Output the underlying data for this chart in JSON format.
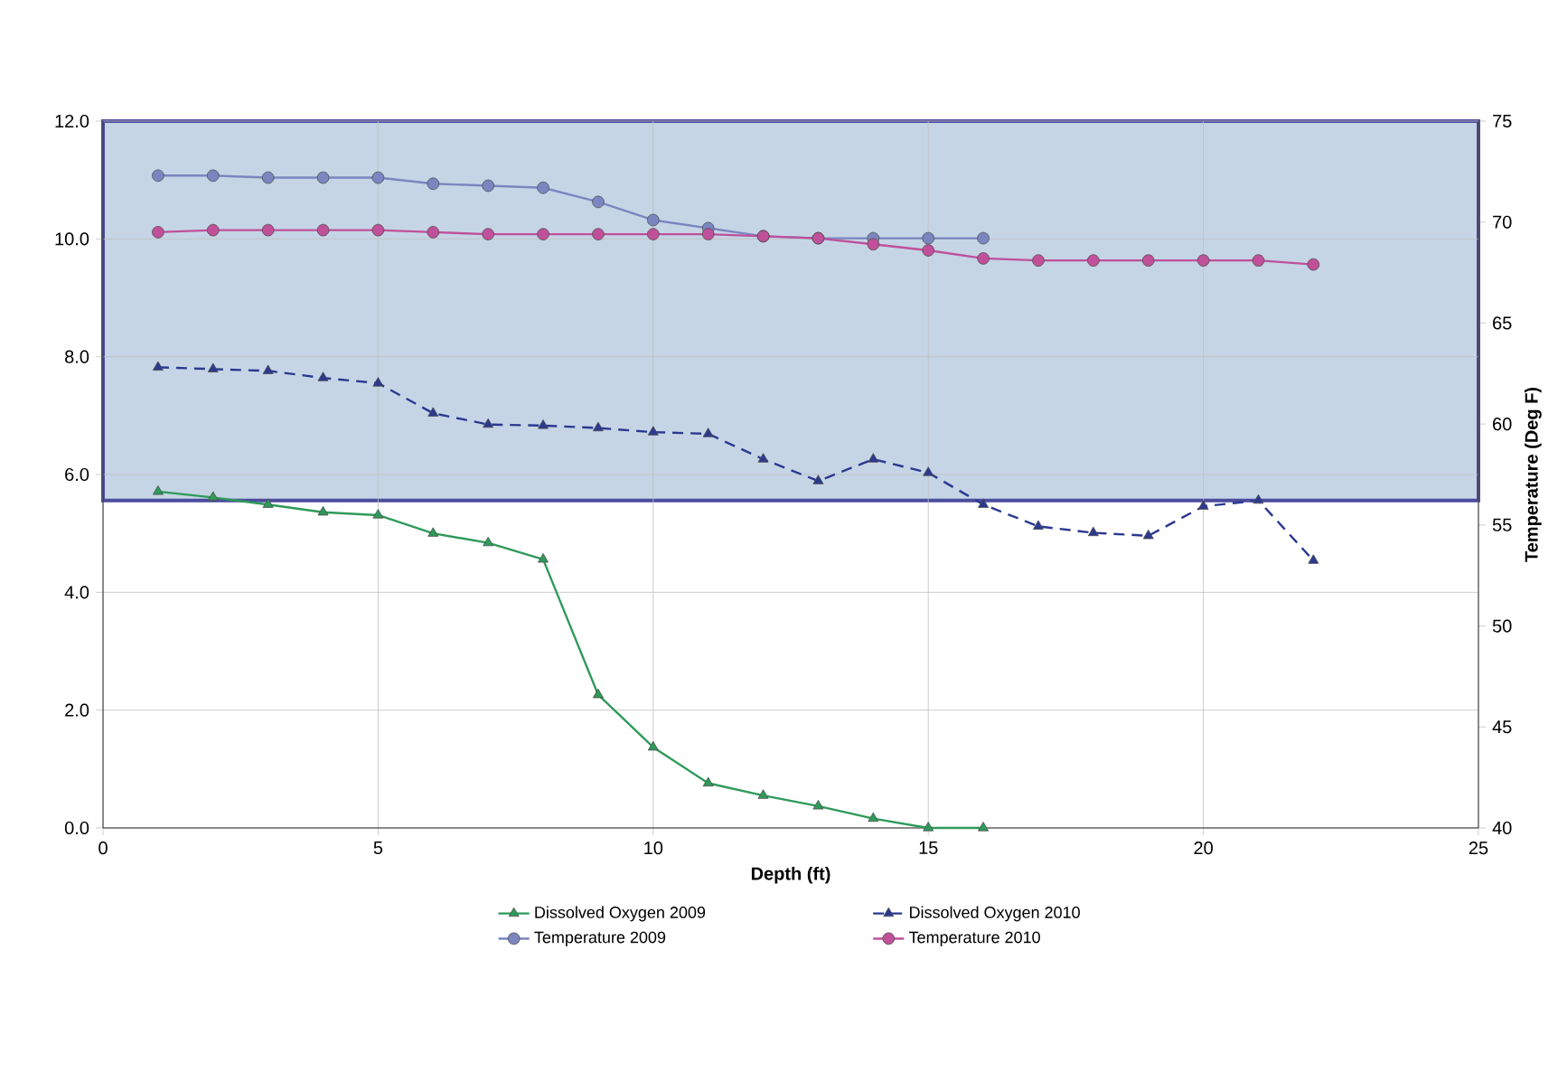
{
  "chart_data": {
    "type": "line",
    "xlabel": "Depth (ft)",
    "y2label": "Temperature (Deg F)",
    "xlim": [
      0,
      25
    ],
    "xticks": [
      0,
      5,
      10,
      15,
      20,
      25
    ],
    "ylim": [
      0,
      12
    ],
    "yticks": [
      {
        "value": 0,
        "label": "0.0"
      },
      {
        "value": 2,
        "label": "2.0"
      },
      {
        "value": 4,
        "label": "4.0"
      },
      {
        "value": 6,
        "label": "6.0"
      },
      {
        "value": 8,
        "label": "8.0"
      },
      {
        "value": 10,
        "label": "10.0"
      },
      {
        "value": 12,
        "label": "12.0"
      }
    ],
    "y2lim": [
      40,
      75
    ],
    "y2ticks": [
      40,
      45,
      50,
      55,
      60,
      65,
      70,
      75
    ],
    "grid": true,
    "legend": "bottom",
    "bands": [
      {
        "axis": "y",
        "from": 5.56,
        "to": 12,
        "color": "#c5d5e6"
      }
    ],
    "series": [
      {
        "name": "Dissolved Oxygen 2009",
        "color": "#2e9a5a",
        "marker": "triangle",
        "line_style": "solid",
        "x": [
          1,
          2,
          3,
          4,
          5,
          6,
          7,
          8,
          9,
          10,
          11,
          12,
          13,
          14,
          15,
          16
        ],
        "values": [
          5.71,
          5.61,
          5.49,
          5.36,
          5.31,
          5.0,
          4.84,
          4.56,
          2.26,
          1.37,
          0.76,
          0.55,
          0.37,
          0.16,
          0,
          0
        ]
      },
      {
        "name": "Dissolved Oxygen 2010",
        "color": "#2b3990",
        "marker": "triangle",
        "line_style": "dashed",
        "x": [
          1,
          2,
          3,
          4,
          5,
          6,
          7,
          8,
          9,
          10,
          11,
          12,
          13,
          14,
          15,
          16,
          17,
          18,
          19,
          20,
          21,
          22
        ],
        "values": [
          7.82,
          7.79,
          7.76,
          7.64,
          7.55,
          7.04,
          6.85,
          6.83,
          6.79,
          6.72,
          6.69,
          6.26,
          5.89,
          6.26,
          6.03,
          5.49,
          5.12,
          5.01,
          4.96,
          5.46,
          5.56,
          4.54
        ]
      },
      {
        "name": "Temperature 2009",
        "color": "#7b86c0",
        "marker": "circle",
        "line_style": "solid",
        "axis": "y2",
        "x": [
          1,
          2,
          3,
          4,
          5,
          6,
          7,
          8,
          9,
          10,
          11,
          12,
          13,
          14,
          15,
          16
        ],
        "values": [
          72.3,
          72.3,
          72.2,
          72.2,
          72.2,
          71.9,
          71.8,
          71.7,
          71.0,
          70.1,
          69.7,
          69.3,
          69.2,
          69.2,
          69.2,
          69.2
        ]
      },
      {
        "name": "Temperature 2010",
        "color": "#c0509a",
        "marker": "circle",
        "line_style": "solid",
        "axis": "y2",
        "x": [
          1,
          2,
          3,
          4,
          5,
          6,
          7,
          8,
          9,
          10,
          11,
          12,
          13,
          14,
          15,
          16,
          17,
          18,
          19,
          20,
          21,
          22
        ],
        "values": [
          69.5,
          69.6,
          69.6,
          69.6,
          69.6,
          69.5,
          69.4,
          69.4,
          69.4,
          69.4,
          69.4,
          69.3,
          69.2,
          68.9,
          68.6,
          68.2,
          68.1,
          68.1,
          68.1,
          68.1,
          68.1,
          67.9
        ]
      }
    ]
  }
}
